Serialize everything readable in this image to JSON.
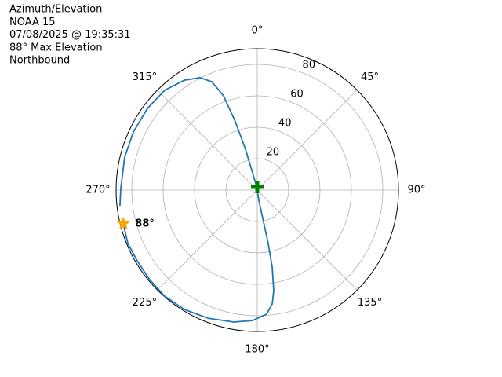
{
  "chart_data": {
    "type": "polar",
    "title_lines": [
      "Azimuth/Elevation",
      "NOAA 15",
      "07/08/2025 @ 19:35:31",
      "88° Max Elevation",
      "Northbound"
    ],
    "theta_zero": "N",
    "theta_direction": "clockwise",
    "xlim": [
      0,
      360
    ],
    "ylim": [
      0,
      90
    ],
    "xticks": [
      {
        "value": 0,
        "label": "0°"
      },
      {
        "value": 45,
        "label": "45°"
      },
      {
        "value": 90,
        "label": "90°"
      },
      {
        "value": 135,
        "label": "135°"
      },
      {
        "value": 180,
        "label": "180°"
      },
      {
        "value": 225,
        "label": "225°"
      },
      {
        "value": 270,
        "label": "270°"
      },
      {
        "value": 315,
        "label": "315°"
      }
    ],
    "yticks": [
      20,
      40,
      60,
      80
    ],
    "grid": true,
    "series": [
      {
        "color": "#1f77b4",
        "theta": [
          257.5,
          247.6,
          239.5,
          230.7,
          221.2,
          211.5,
          201.1,
          190.1,
          182.1,
          175.7,
          172.5,
          170.7,
          169.0,
          168.4,
          169.0,
          171.0,
          350.0,
          344.7,
          343.9,
          342.2,
          340.3,
          337.2,
          333.0,
          326.4,
          317.1,
          306.6,
          295.1,
          284.0,
          270.7,
          263.5
        ],
        "r": [
          88.1,
          89.2,
          88.8,
          89.2,
          89.7,
          89.1,
          87.4,
          85.3,
          83.1,
          79.2,
          73.1,
          64.9,
          49.9,
          34.7,
          18.3,
          6.6,
          2,
          11.4,
          27.1,
          45.7,
          63.7,
          74.8,
          80.3,
          84.0,
          86.7,
          87.2,
          87.2,
          87.1,
          87.0,
          88.1
        ]
      }
    ],
    "markers": [
      {
        "shape": "star",
        "color": "#ffa500",
        "theta": 255.9,
        "r": 88,
        "label": "88°"
      },
      {
        "shape": "plus",
        "color": "#008000",
        "theta": 0,
        "r": 2
      }
    ]
  }
}
